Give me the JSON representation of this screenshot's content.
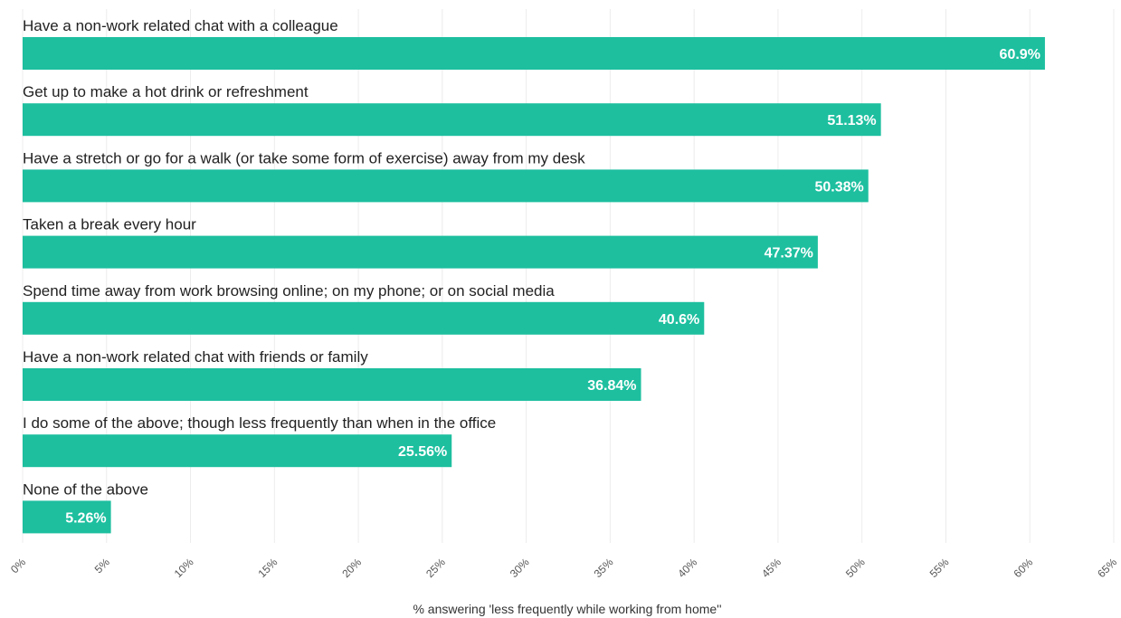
{
  "chart_data": {
    "type": "bar",
    "orientation": "horizontal",
    "categories": [
      "Have a non-work related chat with a colleague",
      "Get up to make a hot drink or refreshment",
      "Have a stretch or go for a walk (or take some form of exercise) away from my desk",
      "Taken a break every hour",
      "Spend time away from work browsing online; on my phone; or on social media",
      "Have a non-work related chat with friends or family",
      "I do some of the above; though less frequently than when in the office",
      "None of the above"
    ],
    "values": [
      60.9,
      51.13,
      50.38,
      47.37,
      40.6,
      36.84,
      25.56,
      5.26
    ],
    "value_labels": [
      "60.9%",
      "51.13%",
      "50.38%",
      "47.37%",
      "40.6%",
      "36.84%",
      "25.56%",
      "5.26%"
    ],
    "xlabel": "% answering 'less frequently while working from home''",
    "xlim": [
      0,
      65
    ],
    "xticks": [
      0,
      5,
      10,
      15,
      20,
      25,
      30,
      35,
      40,
      45,
      50,
      55,
      60,
      65
    ],
    "xtick_labels": [
      "0%",
      "5%",
      "10%",
      "15%",
      "20%",
      "25%",
      "30%",
      "35%",
      "40%",
      "45%",
      "50%",
      "55%",
      "60%",
      "65%"
    ],
    "grid": true,
    "bar_color": "#1dbf9f"
  }
}
